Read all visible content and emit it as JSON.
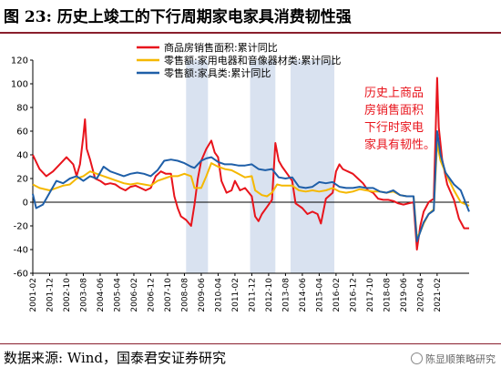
{
  "title": "图 23:  历史上竣工的下行周期家电家具消费韧性强",
  "source": "数据来源:  Wind，国泰君安证券研究",
  "watermark": "陈显顺策略研究",
  "chart_data": {
    "type": "line",
    "ylim": [
      -60,
      120
    ],
    "yticks": [
      -60,
      -40,
      -20,
      0,
      20,
      40,
      60,
      80,
      100,
      120
    ],
    "x_range": [
      "2001-02",
      "2022-09"
    ],
    "xticks": [
      "2001-02",
      "2001-12",
      "2002-10",
      "2003-08",
      "2004-06",
      "2005-04",
      "2006-02",
      "2006-12",
      "2007-10",
      "2008-08",
      "2009-06",
      "2010-04",
      "2011-02",
      "2011-12",
      "2012-10",
      "2013-08",
      "2014-06",
      "2015-04",
      "2016-02",
      "2016-12",
      "2017-10",
      "2018-08",
      "2019-06",
      "2020-04",
      "2021-02"
    ],
    "shaded_periods": [
      [
        "2008-09",
        "2009-10"
      ],
      [
        "2011-11",
        "2013-02"
      ],
      [
        "2013-11",
        "2016-01"
      ]
    ],
    "annotation": [
      "历史上商品",
      "房销售面积",
      "下行时家电",
      "家具有韧性。"
    ],
    "annotation_color": "#e8141c",
    "legend_position": "top-center",
    "series": [
      {
        "name": "商品房销售面积:累计同比",
        "color": "#e8141c",
        "points": [
          [
            "2001-02",
            40
          ],
          [
            "2001-06",
            28
          ],
          [
            "2001-10",
            22
          ],
          [
            "2002-02",
            26
          ],
          [
            "2002-06",
            32
          ],
          [
            "2002-10",
            38
          ],
          [
            "2003-02",
            32
          ],
          [
            "2003-04",
            22
          ],
          [
            "2003-06",
            32
          ],
          [
            "2003-08",
            56
          ],
          [
            "2003-09",
            70
          ],
          [
            "2003-10",
            45
          ],
          [
            "2003-12",
            36
          ],
          [
            "2004-03",
            20
          ],
          [
            "2004-06",
            18
          ],
          [
            "2004-09",
            15
          ],
          [
            "2004-12",
            16
          ],
          [
            "2005-03",
            15
          ],
          [
            "2005-06",
            12
          ],
          [
            "2005-09",
            10
          ],
          [
            "2005-12",
            13
          ],
          [
            "2006-03",
            14
          ],
          [
            "2006-06",
            12
          ],
          [
            "2006-09",
            10
          ],
          [
            "2006-12",
            12
          ],
          [
            "2007-03",
            22
          ],
          [
            "2007-06",
            26
          ],
          [
            "2007-09",
            24
          ],
          [
            "2007-12",
            24
          ],
          [
            "2008-02",
            5
          ],
          [
            "2008-04",
            -5
          ],
          [
            "2008-06",
            -12
          ],
          [
            "2008-09",
            -15
          ],
          [
            "2008-12",
            -20
          ],
          [
            "2009-02",
            -2
          ],
          [
            "2009-04",
            20
          ],
          [
            "2009-06",
            35
          ],
          [
            "2009-09",
            45
          ],
          [
            "2009-12",
            52
          ],
          [
            "2010-02",
            42
          ],
          [
            "2010-04",
            38
          ],
          [
            "2010-06",
            18
          ],
          [
            "2010-09",
            8
          ],
          [
            "2010-12",
            10
          ],
          [
            "2011-02",
            18
          ],
          [
            "2011-05",
            10
          ],
          [
            "2011-08",
            12
          ],
          [
            "2011-12",
            5
          ],
          [
            "2012-02",
            -12
          ],
          [
            "2012-04",
            -16
          ],
          [
            "2012-06",
            -10
          ],
          [
            "2012-09",
            -4
          ],
          [
            "2012-12",
            2
          ],
          [
            "2013-02",
            50
          ],
          [
            "2013-04",
            35
          ],
          [
            "2013-06",
            30
          ],
          [
            "2013-09",
            24
          ],
          [
            "2013-12",
            18
          ],
          [
            "2014-02",
            -1
          ],
          [
            "2014-06",
            -5
          ],
          [
            "2014-09",
            -10
          ],
          [
            "2014-12",
            -8
          ],
          [
            "2015-03",
            -10
          ],
          [
            "2015-05",
            -18
          ],
          [
            "2015-08",
            3
          ],
          [
            "2015-12",
            8
          ],
          [
            "2016-02",
            26
          ],
          [
            "2016-04",
            32
          ],
          [
            "2016-06",
            28
          ],
          [
            "2016-09",
            26
          ],
          [
            "2016-12",
            24
          ],
          [
            "2017-03",
            20
          ],
          [
            "2017-06",
            16
          ],
          [
            "2017-09",
            10
          ],
          [
            "2017-12",
            8
          ],
          [
            "2018-03",
            3
          ],
          [
            "2018-06",
            2
          ],
          [
            "2018-09",
            2
          ],
          [
            "2018-12",
            1
          ],
          [
            "2019-03",
            -1
          ],
          [
            "2019-06",
            -2
          ],
          [
            "2019-09",
            -1
          ],
          [
            "2019-12",
            0
          ],
          [
            "2020-02",
            -40
          ],
          [
            "2020-04",
            -20
          ],
          [
            "2020-06",
            -8
          ],
          [
            "2020-09",
            0
          ],
          [
            "2020-12",
            3
          ],
          [
            "2021-02",
            105
          ],
          [
            "2021-03",
            63
          ],
          [
            "2021-05",
            36
          ],
          [
            "2021-08",
            15
          ],
          [
            "2021-12",
            2
          ],
          [
            "2022-03",
            -14
          ],
          [
            "2022-06",
            -22
          ],
          [
            "2022-09",
            -22
          ]
        ]
      },
      {
        "name": "零售额:家用电器和音像器材类:累计同比",
        "color": "#f5b800",
        "points": [
          [
            "2001-02",
            15
          ],
          [
            "2001-06",
            12
          ],
          [
            "2001-12",
            10
          ],
          [
            "2002-04",
            12
          ],
          [
            "2002-08",
            14
          ],
          [
            "2002-12",
            15
          ],
          [
            "2003-04",
            20
          ],
          [
            "2003-08",
            22
          ],
          [
            "2003-12",
            26
          ],
          [
            "2004-04",
            24
          ],
          [
            "2004-08",
            22
          ],
          [
            "2004-12",
            20
          ],
          [
            "2005-04",
            18
          ],
          [
            "2005-08",
            16
          ],
          [
            "2005-12",
            15
          ],
          [
            "2006-04",
            16
          ],
          [
            "2006-08",
            15
          ],
          [
            "2006-12",
            14
          ],
          [
            "2007-04",
            18
          ],
          [
            "2007-08",
            20
          ],
          [
            "2007-12",
            22
          ],
          [
            "2008-04",
            22
          ],
          [
            "2008-08",
            24
          ],
          [
            "2008-12",
            22
          ],
          [
            "2009-02",
            12
          ],
          [
            "2009-06",
            12
          ],
          [
            "2009-09",
            22
          ],
          [
            "2009-12",
            33
          ],
          [
            "2010-04",
            30
          ],
          [
            "2010-08",
            28
          ],
          [
            "2010-12",
            27
          ],
          [
            "2011-04",
            24
          ],
          [
            "2011-08",
            21
          ],
          [
            "2011-12",
            22
          ],
          [
            "2012-02",
            10
          ],
          [
            "2012-06",
            6
          ],
          [
            "2012-09",
            5
          ],
          [
            "2012-12",
            8
          ],
          [
            "2013-03",
            15
          ],
          [
            "2013-06",
            14
          ],
          [
            "2013-09",
            14
          ],
          [
            "2013-12",
            14
          ],
          [
            "2014-04",
            10
          ],
          [
            "2014-08",
            9
          ],
          [
            "2014-12",
            10
          ],
          [
            "2015-04",
            9
          ],
          [
            "2015-08",
            10
          ],
          [
            "2015-12",
            12
          ],
          [
            "2016-04",
            9
          ],
          [
            "2016-08",
            8
          ],
          [
            "2016-12",
            9
          ],
          [
            "2017-04",
            11
          ],
          [
            "2017-08",
            10
          ],
          [
            "2017-12",
            9
          ],
          [
            "2018-04",
            9
          ],
          [
            "2018-08",
            8
          ],
          [
            "2018-12",
            9
          ],
          [
            "2019-04",
            6
          ],
          [
            "2019-08",
            5
          ],
          [
            "2019-12",
            5
          ],
          [
            "2020-02",
            -30
          ],
          [
            "2020-04",
            -25
          ],
          [
            "2020-06",
            -18
          ],
          [
            "2020-09",
            -10
          ],
          [
            "2020-12",
            -6
          ],
          [
            "2021-02",
            50
          ],
          [
            "2021-04",
            35
          ],
          [
            "2021-07",
            25
          ],
          [
            "2021-12",
            10
          ],
          [
            "2022-04",
            0
          ],
          [
            "2022-09",
            -3
          ]
        ]
      },
      {
        "name": "零售额:家具类:累计同比",
        "color": "#1f5fa8",
        "points": [
          [
            "2001-02",
            7
          ],
          [
            "2001-04",
            -5
          ],
          [
            "2001-08",
            -2
          ],
          [
            "2001-12",
            8
          ],
          [
            "2002-04",
            18
          ],
          [
            "2002-08",
            16
          ],
          [
            "2002-12",
            20
          ],
          [
            "2003-04",
            22
          ],
          [
            "2003-08",
            18
          ],
          [
            "2003-12",
            22
          ],
          [
            "2004-04",
            20
          ],
          [
            "2004-08",
            30
          ],
          [
            "2004-12",
            26
          ],
          [
            "2005-04",
            24
          ],
          [
            "2005-08",
            22
          ],
          [
            "2005-12",
            24
          ],
          [
            "2006-04",
            25
          ],
          [
            "2006-08",
            24
          ],
          [
            "2006-12",
            22
          ],
          [
            "2007-04",
            27
          ],
          [
            "2007-08",
            35
          ],
          [
            "2007-12",
            36
          ],
          [
            "2008-04",
            35
          ],
          [
            "2008-08",
            33
          ],
          [
            "2008-12",
            30
          ],
          [
            "2009-02",
            29
          ],
          [
            "2009-06",
            35
          ],
          [
            "2009-09",
            37
          ],
          [
            "2009-12",
            38
          ],
          [
            "2010-04",
            34
          ],
          [
            "2010-08",
            32
          ],
          [
            "2010-12",
            32
          ],
          [
            "2011-04",
            31
          ],
          [
            "2011-08",
            31
          ],
          [
            "2011-12",
            32
          ],
          [
            "2012-04",
            28
          ],
          [
            "2012-08",
            27
          ],
          [
            "2012-12",
            28
          ],
          [
            "2013-04",
            21
          ],
          [
            "2013-08",
            20
          ],
          [
            "2013-12",
            21
          ],
          [
            "2014-04",
            13
          ],
          [
            "2014-08",
            12
          ],
          [
            "2014-12",
            13
          ],
          [
            "2015-04",
            17
          ],
          [
            "2015-08",
            16
          ],
          [
            "2015-12",
            17
          ],
          [
            "2016-04",
            13
          ],
          [
            "2016-08",
            12
          ],
          [
            "2016-12",
            12
          ],
          [
            "2017-04",
            13
          ],
          [
            "2017-08",
            12
          ],
          [
            "2017-12",
            12
          ],
          [
            "2018-04",
            9
          ],
          [
            "2018-08",
            8
          ],
          [
            "2018-12",
            10
          ],
          [
            "2019-04",
            6
          ],
          [
            "2019-08",
            5
          ],
          [
            "2019-12",
            5
          ],
          [
            "2020-02",
            -33
          ],
          [
            "2020-04",
            -25
          ],
          [
            "2020-06",
            -17
          ],
          [
            "2020-09",
            -10
          ],
          [
            "2020-12",
            -7
          ],
          [
            "2021-02",
            60
          ],
          [
            "2021-04",
            40
          ],
          [
            "2021-07",
            25
          ],
          [
            "2021-12",
            15
          ],
          [
            "2022-04",
            10
          ],
          [
            "2022-09",
            -8
          ]
        ]
      }
    ]
  }
}
